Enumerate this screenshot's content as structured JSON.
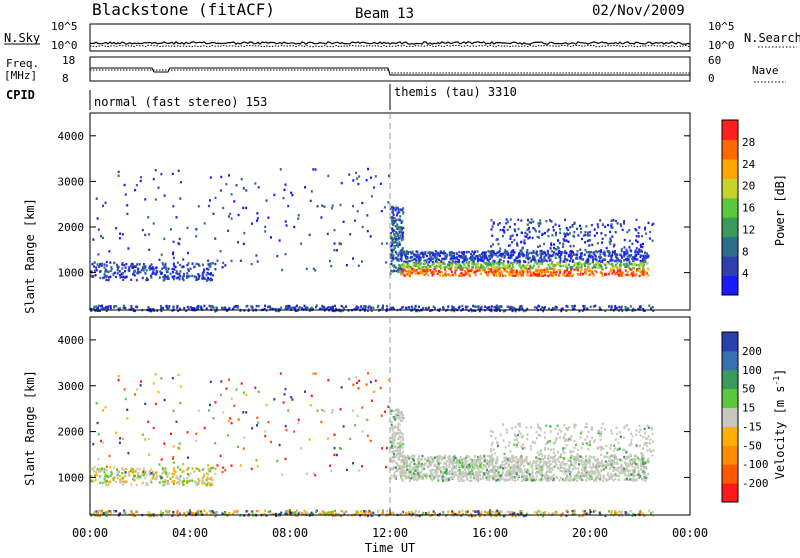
{
  "header": {
    "station": "Blackstone (fitACF)",
    "beam": "Beam 13",
    "date": "02/Nov/2009"
  },
  "noise_panel": {
    "left_label": "N.Sky",
    "right_label": "N.Search",
    "left_ticks": [
      "10^5",
      "10^0"
    ],
    "right_ticks": [
      "10^5",
      "10^0"
    ]
  },
  "freq_panel": {
    "left_label_1": "Freq.",
    "left_label_2": "[MHz]",
    "left_ticks": [
      "18",
      "8"
    ],
    "right_label": "Nave",
    "right_ticks": [
      "60",
      "0"
    ]
  },
  "cpid": {
    "label": "CPID",
    "mode1": "normal (fast stereo) 153",
    "mode2": "themis (tau) 3310",
    "switch_time_h": 12
  },
  "xaxis": {
    "ticks": [
      "00:00",
      "04:00",
      "08:00",
      "12:00",
      "16:00",
      "20:00",
      "00:00"
    ],
    "title": "Time UT",
    "range_h": [
      0,
      24
    ]
  },
  "power_panel": {
    "ylabel": "Slant Range [km]",
    "yticks": [
      "1000",
      "2000",
      "3000",
      "4000"
    ],
    "colorbar_label": "Power [dB]",
    "colorbar_ticks": [
      "4",
      "8",
      "12",
      "16",
      "20",
      "24",
      "28"
    ],
    "colors": [
      "#1a1aff",
      "#2f3fb0",
      "#2e6e8a",
      "#3a9a5a",
      "#5ac83a",
      "#c8d22a",
      "#ffa500",
      "#ff6a00",
      "#ff2020"
    ]
  },
  "velocity_panel": {
    "ylabel": "Slant Range [km]",
    "yticks": [
      "1000",
      "2000",
      "3000",
      "4000"
    ],
    "colorbar_label": "Velocity [m s",
    "colorbar_label_sup": "-1",
    "colorbar_label_end": "]",
    "colorbar_ticks": [
      "200",
      "100",
      "50",
      "15",
      "-15",
      "-50",
      "-100",
      "-200"
    ],
    "colors": [
      "#2a3fb0",
      "#3a6fb0",
      "#3a9a5a",
      "#5ac83a",
      "#c8c8c0",
      "#ffb000",
      "#ff8c00",
      "#ff5a00",
      "#ff1a1a"
    ]
  },
  "chart_data": {
    "type": "heatmap",
    "title": "Blackstone (fitACF)  Beam 13  02/Nov/2009",
    "xlabel": "Time UT",
    "ylabel": "Slant Range [km]",
    "xlim_h": [
      0,
      24
    ],
    "ylim_km": [
      180,
      4500
    ],
    "grid": false,
    "scatter_regions": [
      {
        "name": "near-range band",
        "t_h": [
          0,
          22.5
        ],
        "range_km": [
          180,
          300
        ]
      },
      {
        "name": "morning echo band",
        "t_h": [
          0,
          5
        ],
        "range_km": [
          850,
          1250
        ]
      },
      {
        "name": "sparse echoes",
        "t_h": [
          0,
          12
        ],
        "range_km": [
          1000,
          3300
        ]
      },
      {
        "name": "post-12 UT onset",
        "t_h": [
          12,
          12.5
        ],
        "range_km": [
          1000,
          2500
        ]
      },
      {
        "name": "afternoon strong echoes",
        "t_h": [
          12.4,
          22.3
        ],
        "range_km": [
          950,
          1500
        ]
      },
      {
        "name": "upper diffuse band",
        "t_h": [
          16,
          22.5
        ],
        "range_km": [
          1500,
          2200
        ]
      }
    ],
    "power_db_range": [
      0,
      30
    ],
    "velocity_ms_range": [
      -200,
      200
    ]
  }
}
